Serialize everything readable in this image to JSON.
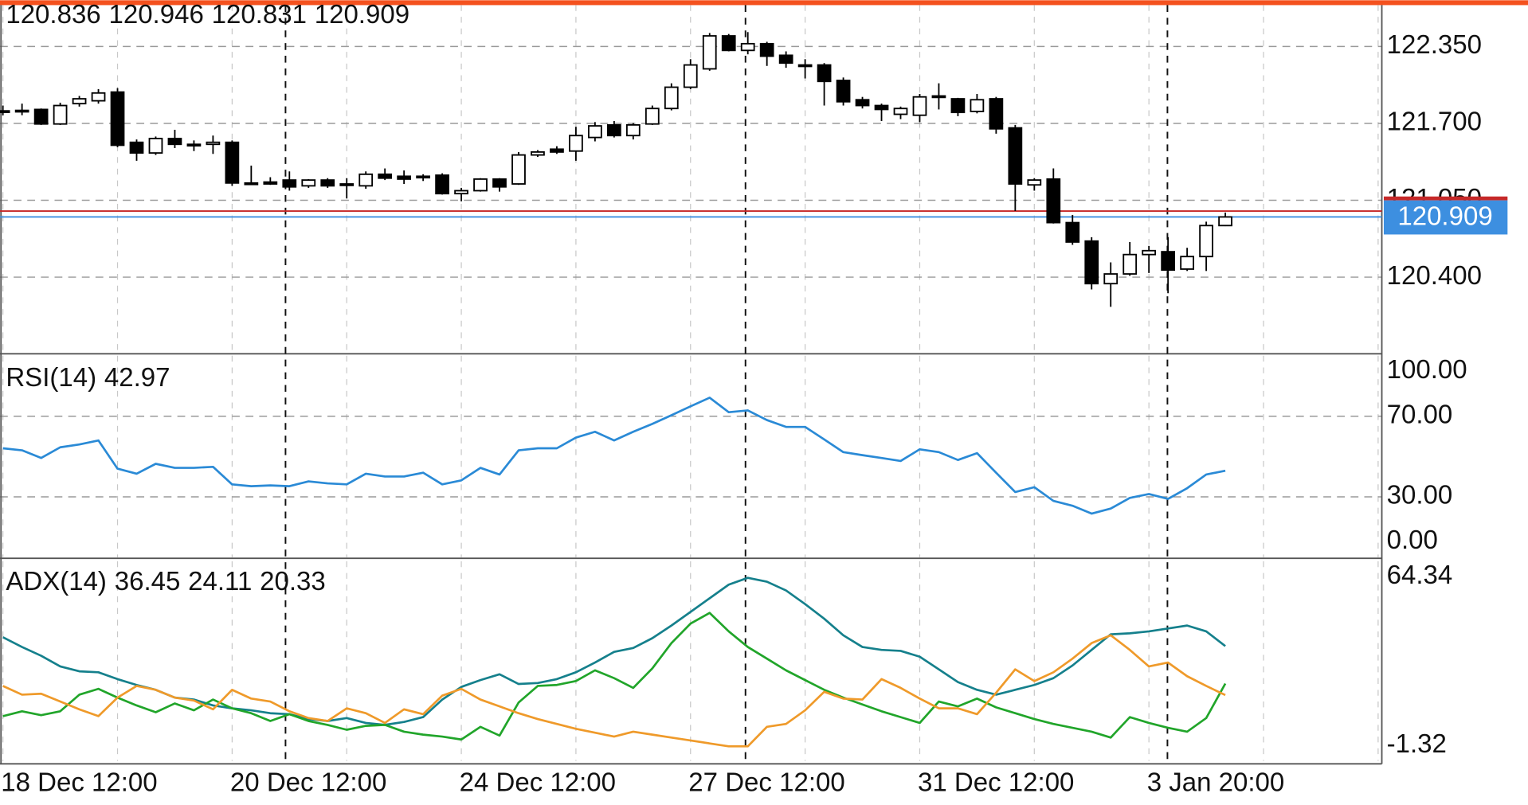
{
  "chart_data": [
    {
      "type": "candlestick",
      "categories": [
        "18 Dec 12:00",
        null,
        null,
        null,
        null,
        null,
        null,
        null,
        null,
        null,
        null,
        null,
        "20 Dec 12:00",
        null,
        null,
        null,
        null,
        null,
        null,
        null,
        null,
        null,
        null,
        null,
        "24 Dec 12:00",
        null,
        null,
        null,
        null,
        null,
        null,
        null,
        null,
        null,
        null,
        null,
        "27 Dec 12:00",
        null,
        null,
        null,
        null,
        null,
        null,
        null,
        null,
        null,
        null,
        null,
        "31 Dec 12:00",
        null,
        null,
        null,
        null,
        null,
        null,
        null,
        null,
        null,
        null,
        null,
        "3 Jan 20:00",
        null,
        null,
        null,
        null
      ],
      "open": [
        121.801,
        121.81,
        121.818,
        121.695,
        121.867,
        121.891,
        121.965,
        121.54,
        121.45,
        121.572,
        121.523,
        121.523,
        121.54,
        121.196,
        121.204,
        121.221,
        121.172,
        121.221,
        121.188,
        121.172,
        121.27,
        121.253,
        121.245,
        121.262,
        121.106,
        121.131,
        121.229,
        121.188,
        121.433,
        121.482,
        121.466,
        121.581,
        121.687,
        121.597,
        121.695,
        121.826,
        122.006,
        122.161,
        122.44,
        122.317,
        122.374,
        122.276,
        122.194,
        122.194,
        122.063,
        121.9,
        121.851,
        121.777,
        121.769,
        121.932,
        121.908,
        121.801,
        121.908,
        121.662,
        121.18,
        121.229,
        120.861,
        120.705,
        120.345,
        120.427,
        120.591,
        120.615,
        120.468,
        120.574,
        120.836
      ],
      "high": [
        121.851,
        121.867,
        121.826,
        121.875,
        121.932,
        121.99,
        121.998,
        121.564,
        121.589,
        121.646,
        121.556,
        121.597,
        121.556,
        121.343,
        121.245,
        121.294,
        121.229,
        121.237,
        121.237,
        121.294,
        121.319,
        121.302,
        121.27,
        121.278,
        121.155,
        121.237,
        121.237,
        121.458,
        121.474,
        121.507,
        121.671,
        121.711,
        121.72,
        121.703,
        121.851,
        122.039,
        122.243,
        122.464,
        122.456,
        122.472,
        122.39,
        122.309,
        122.243,
        122.21,
        122.088,
        121.924,
        121.867,
        121.842,
        121.949,
        122.039,
        121.916,
        121.949,
        121.924,
        121.687,
        121.237,
        121.319,
        120.926,
        120.738,
        120.525,
        120.697,
        120.664,
        120.738,
        120.648,
        120.869,
        120.946
      ],
      "low": [
        121.769,
        121.769,
        121.687,
        121.687,
        121.842,
        121.867,
        121.499,
        121.384,
        121.433,
        121.491,
        121.466,
        121.442,
        121.172,
        121.18,
        121.18,
        121.131,
        121.155,
        121.155,
        121.065,
        121.147,
        121.221,
        121.188,
        121.213,
        121.098,
        121.041,
        121.123,
        121.123,
        121.18,
        121.417,
        121.442,
        121.384,
        121.548,
        121.581,
        121.564,
        121.687,
        121.81,
        121.99,
        122.145,
        122.309,
        122.284,
        122.186,
        122.17,
        122.08,
        121.851,
        121.851,
        121.826,
        121.72,
        121.736,
        121.711,
        121.818,
        121.761,
        121.785,
        121.613,
        120.959,
        121.131,
        120.853,
        120.673,
        120.296,
        120.149,
        120.411,
        120.435,
        120.264,
        120.452,
        120.452,
        120.831
      ],
      "close": [
        121.806,
        121.806,
        121.695,
        121.851,
        121.908,
        121.957,
        121.515,
        121.45,
        121.572,
        121.523,
        121.52,
        121.54,
        121.196,
        121.194,
        121.188,
        121.163,
        121.221,
        121.172,
        121.186,
        121.27,
        121.237,
        121.229,
        121.253,
        121.106,
        121.131,
        121.229,
        121.163,
        121.433,
        121.458,
        121.458,
        121.597,
        121.679,
        121.597,
        121.687,
        121.826,
        122.006,
        122.194,
        122.44,
        122.317,
        122.374,
        122.268,
        122.21,
        122.192,
        122.055,
        121.883,
        121.851,
        121.818,
        121.826,
        121.924,
        121.93,
        121.793,
        121.9,
        121.654,
        121.188,
        121.221,
        120.861,
        120.697,
        120.345,
        120.427,
        120.591,
        120.624,
        120.46,
        120.574,
        120.836,
        120.909
      ],
      "up_color": "#ffffff",
      "down_color": "#000000",
      "price_line_color": "#3d8fe0",
      "ask": 120.959,
      "ask_color": "#c62828",
      "ylim": [
        119.76,
        122.7
      ],
      "yticks": [
        {
          "value": 122.35,
          "label": "122.350"
        },
        {
          "value": 121.7,
          "label": "121.700"
        },
        {
          "value": 121.05,
          "label": "121.050"
        },
        {
          "value": 120.4,
          "label": "120.400"
        }
      ],
      "grid": true
    },
    {
      "type": "line",
      "title": "RSI(14)",
      "color": "#2a8ad6",
      "values": [
        54.1,
        53.1,
        49.3,
        54.6,
        56.0,
        58.0,
        44.0,
        41.5,
        46.4,
        44.4,
        44.4,
        44.9,
        36.2,
        35.3,
        35.7,
        35.3,
        37.7,
        36.7,
        36.2,
        41.5,
        40.1,
        40.1,
        42.0,
        36.2,
        38.2,
        44.4,
        41.1,
        53.1,
        54.1,
        54.1,
        59.4,
        62.3,
        58.0,
        62.3,
        66.2,
        70.5,
        74.9,
        79.2,
        72.0,
        72.9,
        68.1,
        64.7,
        64.7,
        58.5,
        52.2,
        50.7,
        49.3,
        47.8,
        53.6,
        52.2,
        48.3,
        51.7,
        42.0,
        32.4,
        34.8,
        28.0,
        25.6,
        21.7,
        24.2,
        29.5,
        31.4,
        29.0,
        34.3,
        41.1,
        42.97
      ],
      "ylim": [
        0,
        100
      ],
      "yticks": [
        {
          "value": 100,
          "label": "100.00"
        },
        {
          "value": 70,
          "label": "70.00"
        },
        {
          "value": 30,
          "label": "30.00"
        },
        {
          "value": 0,
          "label": "0.00"
        }
      ],
      "grid": true
    },
    {
      "type": "line",
      "title": "ADX(14)",
      "series": [
        {
          "color": "#15808c",
          "values": [
            39.36,
            36.15,
            33.27,
            29.75,
            28.15,
            27.83,
            25.58,
            23.66,
            22.06,
            19.5,
            18.86,
            16.93,
            15.97,
            15.33,
            14.37,
            14.05,
            12.45,
            11.81,
            12.77,
            11.17,
            10.53,
            11.49,
            13.09,
            18.86,
            23.02,
            25.26,
            27.18,
            23.98,
            24.3,
            25.58,
            27.83,
            31.03,
            34.55,
            35.83,
            39.04,
            43.2,
            47.68,
            52.17,
            56.65,
            58.89,
            57.61,
            54.73,
            50.25,
            45.44,
            40.0,
            36.15,
            35.19,
            34.87,
            32.95,
            28.79,
            24.62,
            22.06,
            20.46,
            22.06,
            23.66,
            25.9,
            30.07,
            35.19,
            40.32,
            40.64,
            41.28,
            42.24,
            43.2,
            41.28,
            36.45
          ]
        },
        {
          "color": "#21a52a",
          "values": [
            13.41,
            15.01,
            13.73,
            15.01,
            20.46,
            22.38,
            19.5,
            16.93,
            14.69,
            17.58,
            15.33,
            18.86,
            15.97,
            14.37,
            11.81,
            14.05,
            11.81,
            10.53,
            8.93,
            10.21,
            10.53,
            8.29,
            7.33,
            6.68,
            5.72,
            9.89,
            7.01,
            17.9,
            23.34,
            23.66,
            24.94,
            28.47,
            25.9,
            22.7,
            29.11,
            37.43,
            43.84,
            47.36,
            41.28,
            36.15,
            32.31,
            28.47,
            25.26,
            22.06,
            19.5,
            17.25,
            15.01,
            13.09,
            11.17,
            18.22,
            16.61,
            19.18,
            16.29,
            14.37,
            12.45,
            10.85,
            9.57,
            8.29,
            6.36,
            13.09,
            11.17,
            9.57,
            8.29,
            12.77,
            24.11
          ]
        },
        {
          "color": "#ef9a2a",
          "values": [
            23.34,
            20.46,
            20.78,
            18.22,
            15.65,
            13.41,
            19.5,
            23.34,
            22.06,
            19.5,
            18.54,
            15.65,
            22.06,
            19.18,
            18.22,
            15.01,
            12.77,
            11.81,
            15.97,
            14.37,
            11.17,
            15.65,
            14.05,
            20.14,
            22.38,
            18.86,
            16.61,
            14.37,
            12.45,
            10.85,
            9.25,
            7.97,
            6.68,
            8.29,
            7.33,
            6.36,
            5.4,
            4.44,
            3.48,
            3.48,
            9.89,
            10.85,
            15.33,
            21.42,
            19.18,
            18.86,
            25.58,
            22.7,
            19.18,
            15.97,
            15.97,
            14.05,
            21.1,
            28.79,
            24.94,
            27.83,
            32.31,
            37.43,
            40.0,
            35.19,
            29.75,
            31.03,
            26.54,
            23.34,
            20.33
          ]
        }
      ],
      "ylim": [
        -1.32,
        64.34
      ],
      "yticks": [
        64.34,
        -1.32
      ],
      "grid": true
    }
  ]
}
